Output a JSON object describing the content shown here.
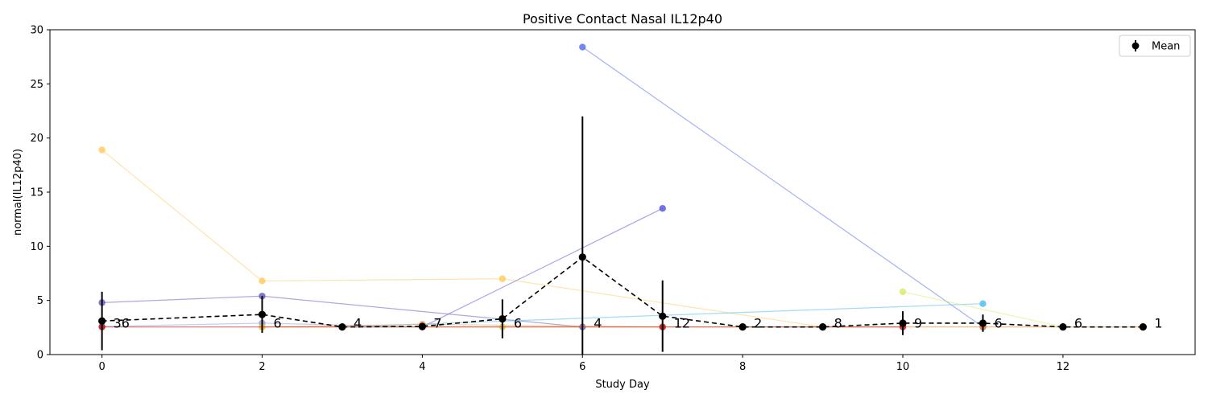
{
  "chart_data": {
    "type": "line",
    "title": "Positive Contact Nasal IL12p40",
    "xlabel": "Study Day",
    "ylabel": "normal(IL12p40)",
    "xlim": [
      -0.65,
      13.65
    ],
    "ylim": [
      0,
      30
    ],
    "xticks": [
      0,
      2,
      4,
      6,
      8,
      10,
      12
    ],
    "yticks": [
      0,
      5,
      10,
      15,
      20,
      25,
      30
    ],
    "grid": false,
    "legend": {
      "position": "top-right",
      "entries": [
        "Mean"
      ]
    },
    "mean": {
      "name": "Mean",
      "color": "#000000",
      "x": [
        0,
        2,
        3,
        4,
        5,
        6,
        7,
        8,
        9,
        10,
        11,
        12,
        13
      ],
      "y": [
        3.1,
        3.7,
        2.55,
        2.6,
        3.3,
        9.0,
        3.55,
        2.55,
        2.55,
        2.9,
        2.9,
        2.55,
        2.55
      ],
      "err": [
        2.7,
        1.7,
        0.0,
        0.2,
        1.8,
        13.0,
        3.3,
        0.0,
        0.0,
        1.1,
        0.8,
        0.0,
        0.0
      ],
      "counts": [
        "36",
        "6",
        "4",
        "7",
        "6",
        "4",
        "12",
        "2",
        "8",
        "9",
        "6",
        "6",
        "1"
      ]
    },
    "subjects": [
      {
        "color": "#ffcc66",
        "x": [
          0,
          2,
          5,
          9
        ],
        "y": [
          18.9,
          6.8,
          7.0,
          2.55
        ]
      },
      {
        "color": "#5b73ee",
        "x": [
          6,
          11
        ],
        "y": [
          28.4,
          2.55
        ]
      },
      {
        "color": "#5b5be0",
        "x": [
          4,
          7
        ],
        "y": [
          2.55,
          13.5
        ]
      },
      {
        "color": "#6a5fc4",
        "x": [
          0,
          2,
          6
        ],
        "y": [
          4.8,
          5.4,
          2.55
        ]
      },
      {
        "color": "#55c0f0",
        "x": [
          3,
          11
        ],
        "y": [
          2.55,
          4.7
        ]
      },
      {
        "color": "#d4f06a",
        "x": [
          10,
          12
        ],
        "y": [
          5.8,
          2.55
        ]
      },
      {
        "color": "#9aa0e6",
        "x": [
          0,
          2,
          4
        ],
        "y": [
          2.6,
          2.9,
          2.55
        ]
      },
      {
        "color": "#f5a060",
        "x": [
          2,
          4,
          7
        ],
        "y": [
          2.55,
          2.8,
          2.55
        ]
      },
      {
        "color": "#e8c84a",
        "x": [
          2,
          5,
          8
        ],
        "y": [
          2.55,
          2.55,
          2.55
        ]
      },
      {
        "color": "#f08030",
        "x": [
          8,
          11,
          13
        ],
        "y": [
          2.55,
          2.55,
          2.55
        ]
      },
      {
        "color": "#c01818",
        "x": [
          0,
          4,
          7,
          10
        ],
        "y": [
          2.55,
          2.55,
          2.55,
          2.55
        ]
      }
    ]
  }
}
